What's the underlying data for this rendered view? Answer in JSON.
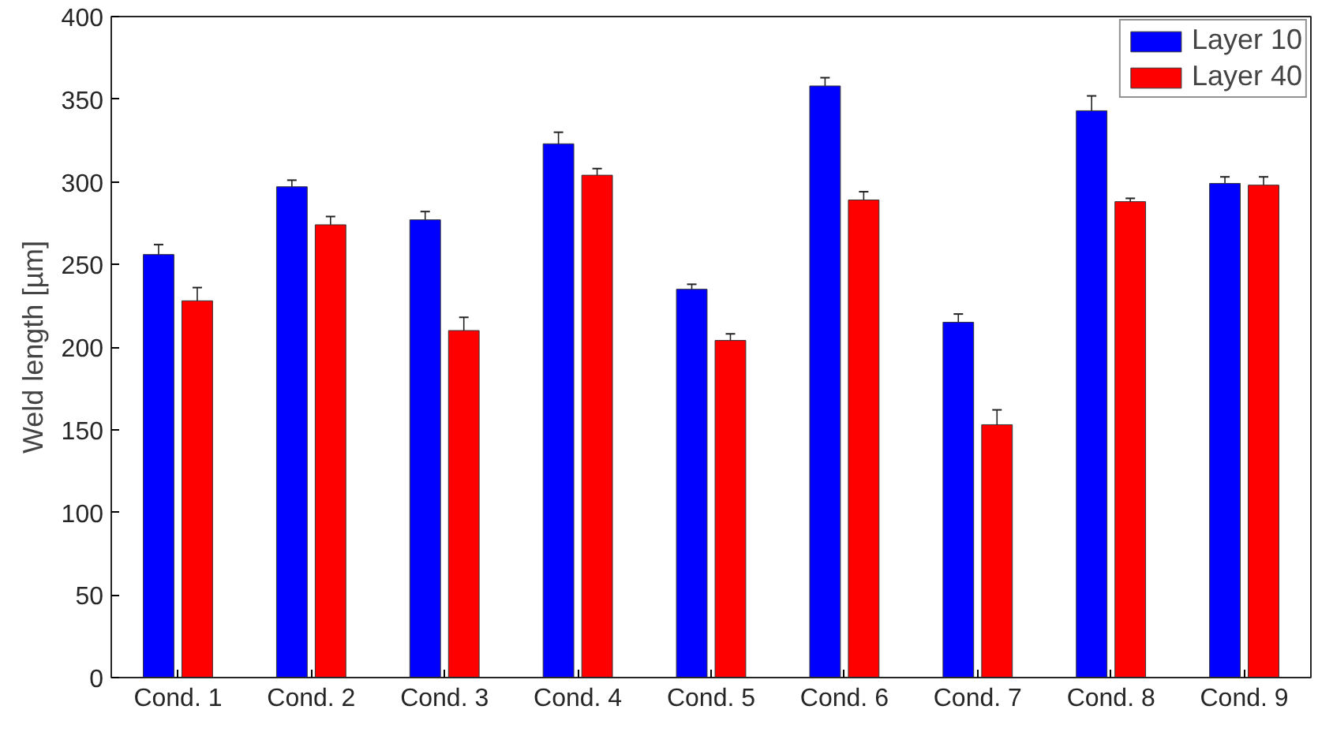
{
  "chart_data": {
    "type": "bar",
    "ylabel": "Weld length [µm]",
    "categories": [
      "Cond. 1",
      "Cond. 2",
      "Cond. 3",
      "Cond. 4",
      "Cond. 5",
      "Cond. 6",
      "Cond. 7",
      "Cond. 8",
      "Cond. 9"
    ],
    "series": [
      {
        "name": "Layer 10",
        "color": "#0000ff",
        "values": [
          256,
          297,
          277,
          323,
          235,
          358,
          215,
          343,
          299
        ],
        "errors": [
          6,
          4,
          5,
          7,
          3,
          5,
          5,
          9,
          4
        ]
      },
      {
        "name": "Layer 40",
        "color": "#ff0000",
        "values": [
          228,
          274,
          210,
          304,
          204,
          289,
          153,
          288,
          298
        ],
        "errors": [
          8,
          5,
          8,
          4,
          4,
          5,
          9,
          2,
          5
        ]
      }
    ],
    "ylim": [
      0,
      400
    ],
    "yticks": [
      0,
      50,
      100,
      150,
      200,
      250,
      300,
      350,
      400
    ],
    "grid": false,
    "legend": "top right"
  }
}
